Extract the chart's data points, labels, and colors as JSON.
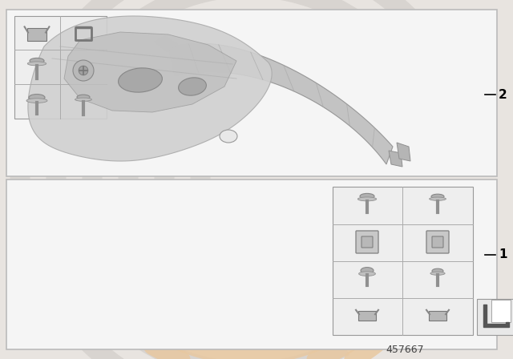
{
  "bg_color": "#e8e4e0",
  "panel1_bg": "#f5f5f5",
  "panel2_bg": "#f5f5f5",
  "border_color": "#bbbbbb",
  "watermark_gray": "#d8d4d0",
  "watermark_orange": "#e8c8a0",
  "part_color": "#c0bebb",
  "part_edge": "#909090",
  "screw_color": "#a0a0a0",
  "grid_bg": "#f0f0f0",
  "catalog_number": "457667",
  "label1": "1",
  "label2": "2",
  "label_line_color": "#000000",
  "label_fontsize": 11,
  "catalog_fontsize": 9
}
